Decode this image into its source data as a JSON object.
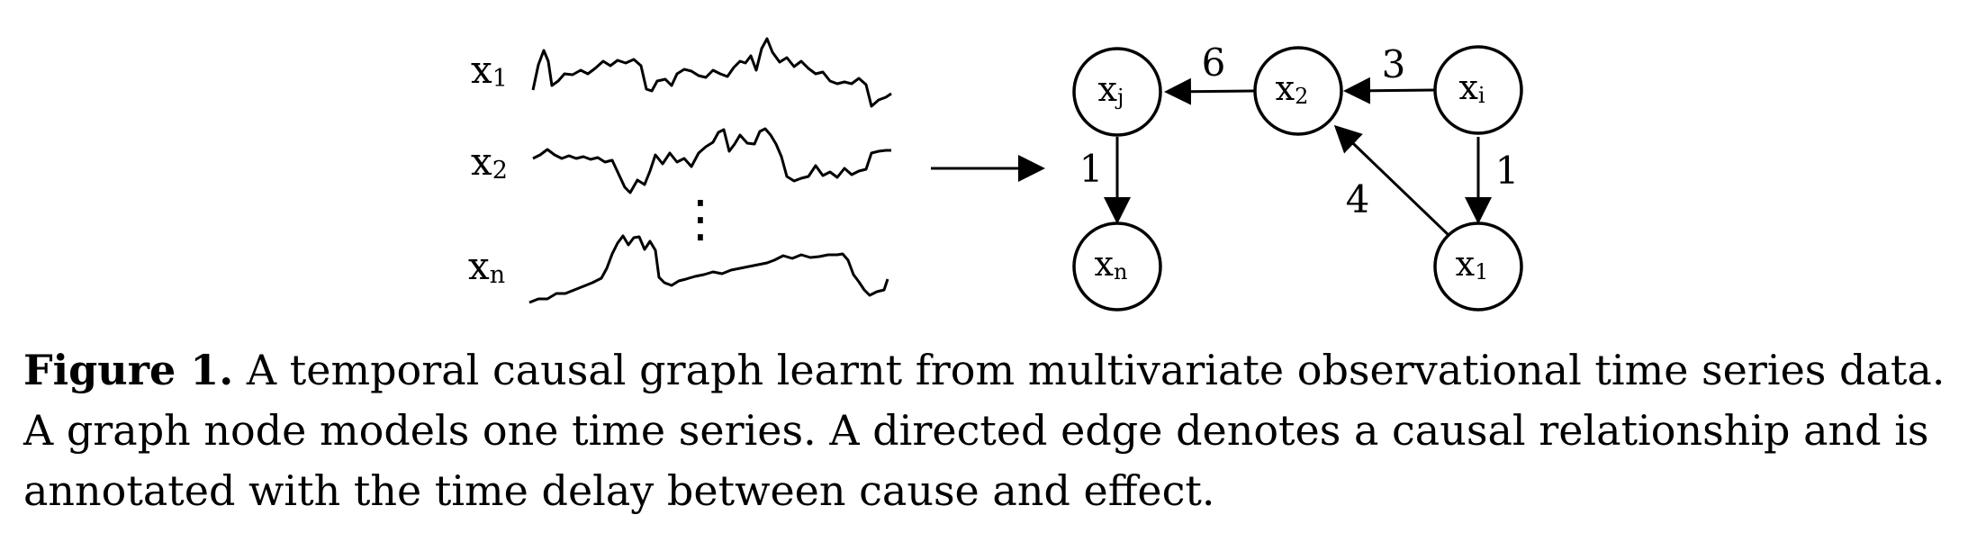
{
  "series": [
    {
      "label": "x",
      "sub": "1"
    },
    {
      "label": "x",
      "sub": "2"
    },
    {
      "label": "x",
      "sub": "n"
    }
  ],
  "ellipsis": "⋮",
  "nodes": [
    {
      "id": "xj",
      "label": "x",
      "sub": "j"
    },
    {
      "id": "x2",
      "label": "x",
      "sub": "2"
    },
    {
      "id": "xi",
      "label": "x",
      "sub": "i"
    },
    {
      "id": "xn",
      "label": "x",
      "sub": "n"
    },
    {
      "id": "x1",
      "label": "x",
      "sub": "1"
    }
  ],
  "edges": [
    {
      "from": "x2",
      "to": "xj",
      "delay": "6"
    },
    {
      "from": "xi",
      "to": "x2",
      "delay": "3"
    },
    {
      "from": "xj",
      "to": "xn",
      "delay": "1"
    },
    {
      "from": "xi",
      "to": "x1",
      "delay": "1"
    },
    {
      "from": "x1",
      "to": "x2",
      "delay": "4"
    }
  ],
  "caption": {
    "label": "Figure 1.",
    "text": " A temporal causal graph learnt from multivariate observational time series data. A graph node models one time series. A directed edge denotes a causal relationship and is annotated with the time delay between cause and effect."
  }
}
